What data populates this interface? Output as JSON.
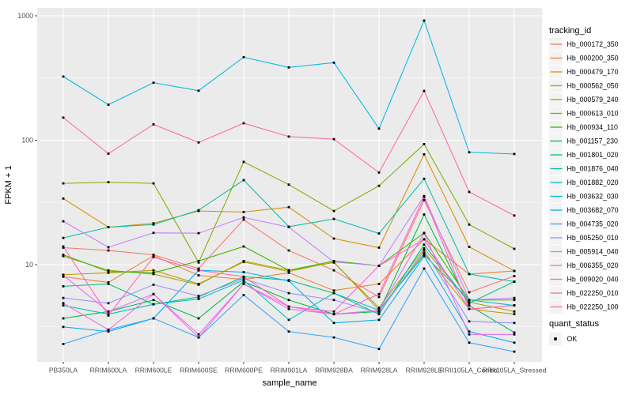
{
  "figure": {
    "background": "#ffffff",
    "panel_background": "#ebebeb",
    "grid_color": "#ffffff",
    "tick_color": "#333333",
    "axis_text_color": "#4d4d4d",
    "title_text_color": "#000000"
  },
  "legend": {
    "tracking_title": "tracking_id",
    "quant_title": "quant_status",
    "quant_items": [
      {
        "label": "OK"
      }
    ],
    "key_fill": "#f3f3f3",
    "point_color": "#000000"
  },
  "chart_data": {
    "type": "line",
    "xlabel": "sample_name",
    "ylabel": "FPKM + 1",
    "y_scale": "log10",
    "ylim": [
      1.66,
      1160
    ],
    "y_ticks": [
      "10",
      "100",
      "1000"
    ],
    "y_tick_values": [
      10,
      100,
      1000
    ],
    "y_minor_values": [
      3.1623,
      31.623,
      316.23
    ],
    "grid": true,
    "legend_position": "right",
    "point_shape": "filled-square",
    "point_color": "#000000",
    "categories": [
      "PB350LA",
      "RRIM600LA",
      "RRIM600LE",
      "RRIM600SE",
      "RRIM600PE",
      "RRIM901LA",
      "RRIM928BA",
      "RRIM928LA",
      "RRIM928LE",
      "RRII105LA_Control",
      "RRII105LA_Stressed"
    ],
    "series": [
      {
        "name": "Hb_000172_350",
        "color": "#F8766D",
        "values": [
          13.7,
          13.0,
          12.0,
          9.3,
          23.0,
          13.0,
          9.0,
          5.5,
          33.0,
          6.0,
          8.1
        ]
      },
      {
        "name": "Hb_000200_350",
        "color": "#EA8331",
        "values": [
          8.0,
          7.2,
          11.8,
          8.2,
          7.6,
          8.6,
          6.2,
          7.0,
          16.0,
          8.4,
          8.9
        ]
      },
      {
        "name": "Hb_000479_170",
        "color": "#D89000",
        "values": [
          34.0,
          20.0,
          21.5,
          27.0,
          26.5,
          29.0,
          16.2,
          13.7,
          77.0,
          13.9,
          8.9
        ]
      },
      {
        "name": "Hb_000562_050",
        "color": "#C09B00",
        "values": [
          8.3,
          8.6,
          9.0,
          7.0,
          10.5,
          8.8,
          10.5,
          4.3,
          12.4,
          4.4,
          4.0
        ]
      },
      {
        "name": "Hb_000579_240",
        "color": "#A3A500",
        "values": [
          11.7,
          9.0,
          8.4,
          6.9,
          10.7,
          9.0,
          10.4,
          4.5,
          13.5,
          5.0,
          4.2
        ]
      },
      {
        "name": "Hb_000613_010",
        "color": "#7CAE00",
        "values": [
          45.0,
          46.0,
          45.0,
          10.4,
          67.0,
          44.0,
          27.0,
          43.0,
          93.0,
          21.0,
          13.4
        ]
      },
      {
        "name": "Hb_000934_110",
        "color": "#39B600",
        "values": [
          12.0,
          8.8,
          8.6,
          10.7,
          14.0,
          9.0,
          10.7,
          9.8,
          18.0,
          5.2,
          5.2
        ]
      },
      {
        "name": "Hb_001157_230",
        "color": "#00BB4E",
        "values": [
          3.7,
          4.2,
          5.2,
          3.7,
          7.3,
          5.2,
          4.0,
          4.2,
          25.3,
          4.7,
          2.85
        ]
      },
      {
        "name": "Hb_001801_020",
        "color": "#00BF7D",
        "values": [
          6.7,
          7.0,
          4.8,
          5.5,
          8.0,
          7.5,
          5.9,
          4.0,
          14.5,
          4.9,
          7.3
        ]
      },
      {
        "name": "Hb_001876_040",
        "color": "#00C1A3",
        "values": [
          16.4,
          20.0,
          21.0,
          27.4,
          47.8,
          20.2,
          23.3,
          17.8,
          49.0,
          8.4,
          7.3
        ]
      },
      {
        "name": "Hb_001882_020",
        "color": "#00BFC4",
        "values": [
          4.7,
          4.0,
          4.8,
          5.3,
          7.5,
          3.6,
          5.9,
          4.3,
          12.0,
          5.2,
          4.7
        ]
      },
      {
        "name": "Hb_003632_030",
        "color": "#00BAE0",
        "values": [
          325,
          193,
          290,
          250,
          465,
          385,
          420,
          124,
          916,
          80,
          77.5
        ]
      },
      {
        "name": "Hb_003682_070",
        "color": "#00B0F6",
        "values": [
          3.16,
          2.9,
          3.7,
          9.0,
          8.7,
          7.4,
          3.4,
          3.6,
          11.7,
          2.9,
          2.36
        ]
      },
      {
        "name": "Hb_004735_020",
        "color": "#35A2FF",
        "values": [
          2.3,
          3.0,
          3.7,
          2.6,
          5.7,
          2.9,
          2.6,
          2.1,
          9.3,
          2.36,
          2.0
        ]
      },
      {
        "name": "Hb_005250_010",
        "color": "#9590FF",
        "values": [
          5.4,
          4.9,
          6.9,
          5.6,
          7.7,
          5.9,
          5.2,
          4.1,
          13.0,
          3.5,
          3.4
        ]
      },
      {
        "name": "Hb_005914_040",
        "color": "#C77CFF",
        "values": [
          22.3,
          13.8,
          18.0,
          17.9,
          24.0,
          20.0,
          10.5,
          9.8,
          35.6,
          5.2,
          5.4
        ]
      },
      {
        "name": "Hb_006355_020",
        "color": "#E76BF3",
        "values": [
          8.2,
          4.2,
          5.8,
          2.75,
          7.0,
          4.4,
          4.0,
          4.3,
          17.9,
          2.75,
          2.75
        ]
      },
      {
        "name": "Hb_009020_040",
        "color": "#FA62DB",
        "values": [
          4.9,
          3.0,
          5.8,
          2.6,
          7.0,
          4.6,
          4.2,
          9.8,
          16.0,
          4.4,
          4.7
        ]
      },
      {
        "name": "Hb_022250_010",
        "color": "#FF62BC",
        "values": [
          14.0,
          3.9,
          11.5,
          9.0,
          8.0,
          4.6,
          4.0,
          5.8,
          35.0,
          4.4,
          4.7
        ]
      },
      {
        "name": "Hb_022250_100",
        "color": "#FF6C90",
        "values": [
          152,
          78,
          134,
          96,
          137,
          107,
          102,
          55,
          249,
          38.4,
          24.8
        ]
      }
    ]
  }
}
